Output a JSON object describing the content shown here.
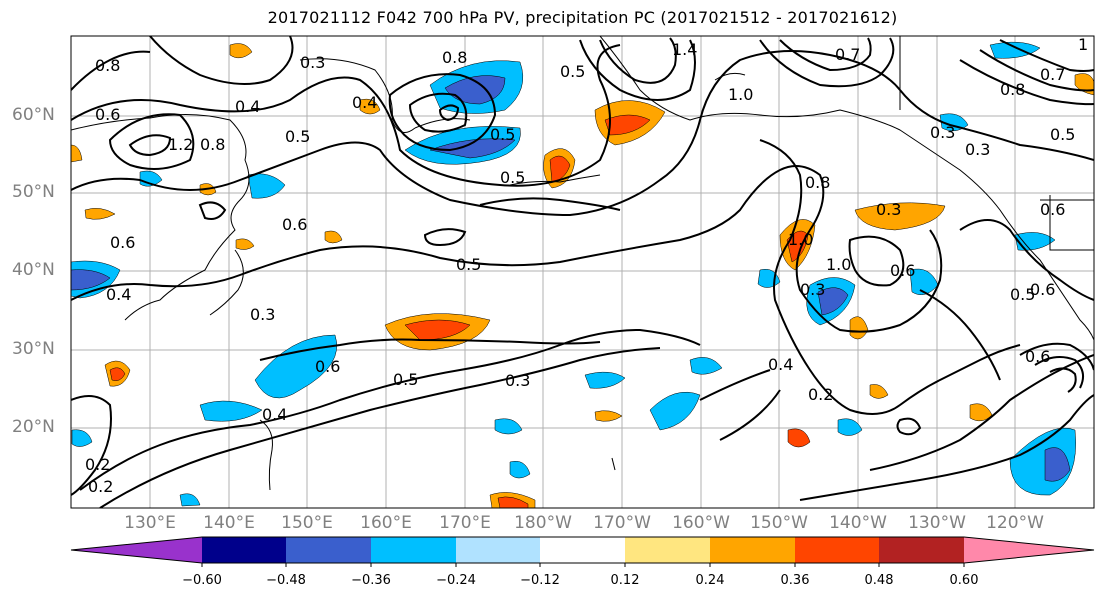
{
  "title": "2017021112 F042 700 hPa PV, precipitation PC (2017021512 - 2017021612)",
  "lat_labels": [
    "60°N",
    "50°N",
    "40°N",
    "30°N",
    "20°N"
  ],
  "lon_labels": [
    "130°E",
    "140°E",
    "150°E",
    "160°E",
    "170°E",
    "180°W",
    "170°W",
    "160°W",
    "150°W",
    "140°W",
    "130°W",
    "120°W"
  ],
  "colorbar": {
    "ticks": [
      "−0.60",
      "−0.48",
      "−0.36",
      "−0.24",
      "−0.12",
      "0.12",
      "0.24",
      "0.36",
      "0.48",
      "0.60"
    ],
    "colors": [
      "#9932cc",
      "#00008b",
      "#3a5fcd",
      "#00bfff",
      "#b0e2ff",
      "#ffffff",
      "#ffe680",
      "#ffa500",
      "#ff4500",
      "#b22222",
      "#ff88aa"
    ]
  },
  "contour_labels": [
    "0.8",
    "0.3",
    "0.8",
    "0.5",
    "1.0",
    "1.4",
    "0.7",
    "1",
    "1.2",
    "0.6",
    "0.4",
    "0.8",
    "0.5",
    "0.4",
    "0.5",
    "0.8",
    "1.0",
    "0.6",
    "0.3",
    "0.6",
    "0.5",
    "0.6",
    "0.3",
    "0.5",
    "0.3",
    "0.4",
    "0.2",
    "0.3",
    "1.0",
    "0.6",
    "0.3",
    "0.5",
    "0.6",
    "0.5",
    "0.7",
    "0.2",
    "0.4",
    "0.8",
    "0.3",
    "0.6",
    "0.5",
    "0.6",
    "0.2",
    "0.4"
  ]
}
